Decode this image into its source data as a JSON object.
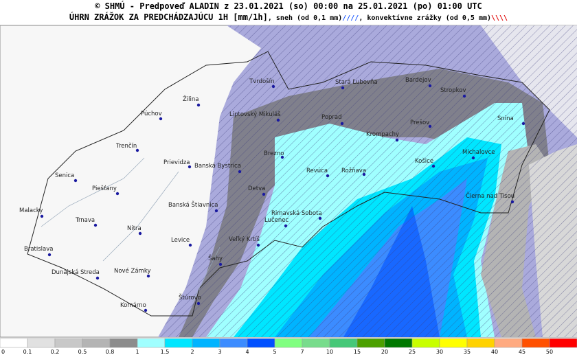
{
  "header": {
    "line1": "© SHMÚ - Predpoveď ALADIN z 23.01.2021 (so) 00:00 na 25.01.2021 (po) 01:00 UTC",
    "line2": "ÚHRN ZRÁŽOK ZA PREDCHÁDZAJÚCU 1H [mm/1h]",
    "snow": ", sneh (od 0,1 mm)",
    "snow_symbol": "////",
    "convective": ", konvektívne zrážky (od 0,5 mm)",
    "convective_symbol": "\\\\\\\\"
  },
  "cities": [
    "Tvrdošín",
    "Stará Ľubovňa",
    "Bardejov",
    "Stropkov",
    "Žilina",
    "Púchov",
    "Liptovský Mikuláš",
    "Poprad",
    "Prešov",
    "Snina",
    "Trenčín",
    "Brezno",
    "Krompachy",
    "Košice",
    "Michalovce",
    "Prievidza",
    "Banská Bystrica",
    "Revúca",
    "Rožňava",
    "Senica",
    "Piešťany",
    "Čierna nad Tisou",
    "Detva",
    "Malacky",
    "Banská Štiavnica",
    "Rimavská Sobota",
    "Lučenec",
    "Trnava",
    "Nitra",
    "Levice",
    "Veľký Krtíš",
    "Bratislava",
    "Šahy",
    "Nové Zámky",
    "Dunajská Streda",
    "Štúrovo",
    "Komárno"
  ],
  "legend": {
    "ticks": [
      0,
      0.1,
      0.2,
      0.5,
      0.8,
      1,
      1.5,
      2,
      3,
      4,
      5,
      7,
      10,
      15,
      20,
      25,
      30,
      35,
      40,
      45,
      50
    ],
    "colors": [
      "#ffffff",
      "#e1e1e1",
      "#c8c8c8",
      "#b4b4b4",
      "#8c8c8c",
      "#a0ffff",
      "#00e6ff",
      "#00b4ff",
      "#3c8cff",
      "#0050ff",
      "#80ff80",
      "#78dc8c",
      "#46c878",
      "#4ca000",
      "#007800",
      "#c8ff00",
      "#ffff00",
      "#ffd200",
      "#ffaa80",
      "#ff5000",
      "#ff0000"
    ]
  }
}
